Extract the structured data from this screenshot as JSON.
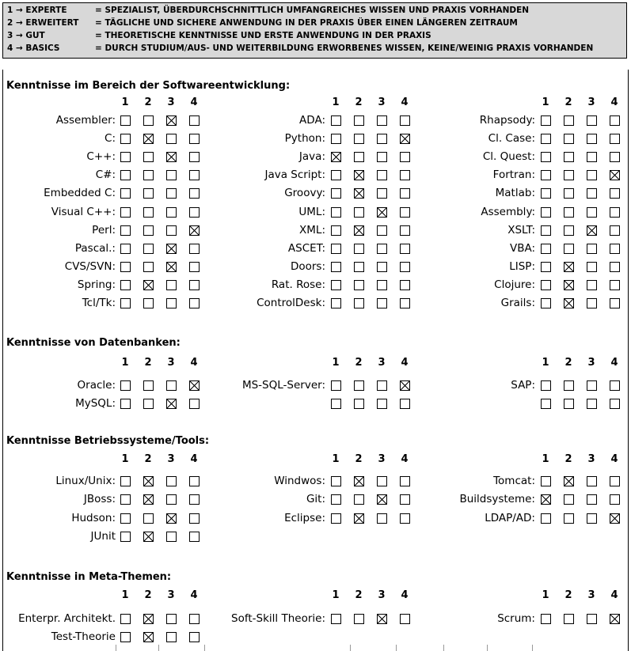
{
  "legend": [
    {
      "key": "1 → EXPERTE",
      "desc": "= SPEZIALIST, ÜBERDURCHSCHNITTLICH UMFANGREICHES WISSEN UND PRAXIS VORHANDEN"
    },
    {
      "key": "2 → ERWEITERT",
      "desc": "= TÄGLICHE UND SICHERE ANWENDUNG IN DER PRAXIS ÜBER EINEN LÄNGEREN ZEITRAUM"
    },
    {
      "key": "3 → GUT",
      "desc": "= THEORETISCHE KENNTNISSE UND ERSTE ANWENDUNG IN DER PRAXIS"
    },
    {
      "key": "4 → BASICS",
      "desc": "= DURCH STUDIUM/AUS- UND WEITERBILDUNG ERWORBENES WISSEN, KEINE/WEINIG PRAXIS VORHANDEN"
    }
  ],
  "level_headers": [
    "1",
    "2",
    "3",
    "4"
  ],
  "sections": [
    {
      "title": "Kenntnisse im Bereich der Softwareentwicklung:",
      "columns": [
        [
          {
            "label": "Assembler:",
            "level": 3
          },
          {
            "label": "C:",
            "level": 2
          },
          {
            "label": "C++:",
            "level": 3
          },
          {
            "label": "C#:",
            "level": 0
          },
          {
            "label": "Embedded C:",
            "level": 0
          },
          {
            "label": "Visual C++:",
            "level": 0
          },
          {
            "label": "Perl:",
            "level": 4
          },
          {
            "label": "Pascal.:",
            "level": 3
          },
          {
            "label": "CVS/SVN:",
            "level": 3
          },
          {
            "label": "Spring:",
            "level": 2
          },
          {
            "label": "Tcl/Tk:",
            "level": 0
          }
        ],
        [
          {
            "label": "ADA:",
            "level": 0
          },
          {
            "label": "Python:",
            "level": 4
          },
          {
            "label": "Java:",
            "level": 1
          },
          {
            "label": "Java Script:",
            "level": 2
          },
          {
            "label": "Groovy:",
            "level": 2
          },
          {
            "label": "UML:",
            "level": 3
          },
          {
            "label": "XML:",
            "level": 2
          },
          {
            "label": "ASCET:",
            "level": 0
          },
          {
            "label": "Doors:",
            "level": 0
          },
          {
            "label": "Rat. Rose:",
            "level": 0
          },
          {
            "label": "ControlDesk:",
            "level": 0
          }
        ],
        [
          {
            "label": "Rhapsody:",
            "level": 0
          },
          {
            "label": "Cl. Case:",
            "level": 0
          },
          {
            "label": "Cl. Quest:",
            "level": 0
          },
          {
            "label": "Fortran:",
            "level": 4
          },
          {
            "label": "Matlab:",
            "level": 0
          },
          {
            "label": "Assembly:",
            "level": 0
          },
          {
            "label": "XSLT:",
            "level": 3
          },
          {
            "label": "VBA:",
            "level": 0
          },
          {
            "label": "LISP:",
            "level": 2
          },
          {
            "label": "Clojure:",
            "level": 2
          },
          {
            "label": "Grails:",
            "level": 2
          }
        ]
      ]
    },
    {
      "title": "Kenntnisse von Datenbanken:",
      "columns": [
        [
          {
            "label": "Oracle:",
            "level": 4
          },
          {
            "label": "MySQL:",
            "level": 3
          }
        ],
        [
          {
            "label": "MS-SQL-Server:",
            "level": 4
          },
          {
            "label": "",
            "level": 0
          }
        ],
        [
          {
            "label": "SAP:",
            "level": 0
          },
          {
            "label": "",
            "level": 0
          }
        ]
      ]
    },
    {
      "title": "Kenntnisse Betriebssysteme/Tools:",
      "columns": [
        [
          {
            "label": "Linux/Unix:",
            "level": 2
          },
          {
            "label": "JBoss:",
            "level": 2
          },
          {
            "label": "Hudson:",
            "level": 3
          },
          {
            "label": "JUnit",
            "level": 2
          }
        ],
        [
          {
            "label": "Windwos:",
            "level": 2
          },
          {
            "label": "Git:",
            "level": 3
          },
          {
            "label": "Eclipse:",
            "level": 2
          }
        ],
        [
          {
            "label": "Tomcat:",
            "level": 2
          },
          {
            "label": "Buildsysteme:",
            "level": 1
          },
          {
            "label": "LDAP/AD:",
            "level": 4
          }
        ]
      ]
    },
    {
      "title": "Kenntnisse in Meta-Themen:",
      "columns": [
        [
          {
            "label": "Enterpr. Architekt.",
            "level": 2
          },
          {
            "label": "Test-Theorie",
            "level": 2
          }
        ],
        [
          {
            "label": "Soft-Skill Theorie:",
            "level": 3
          }
        ],
        [
          {
            "label": "Scrum:",
            "level": 4
          }
        ]
      ]
    }
  ]
}
